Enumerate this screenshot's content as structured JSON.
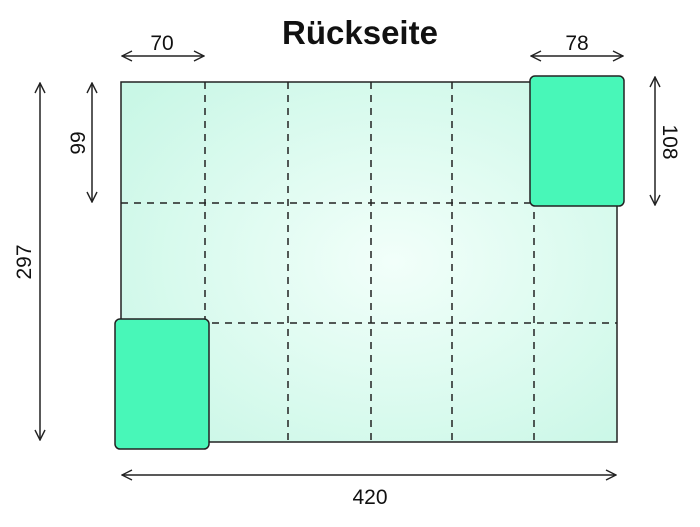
{
  "title": "Rückseite",
  "dimensions": {
    "cell_width": "70",
    "label_width": "78",
    "total_width": "420",
    "total_height": "297",
    "cell_height": "99",
    "label_height": "108"
  },
  "grid": {
    "columns": 6,
    "rows": 3
  },
  "colors": {
    "sheet_fill_center": "#f2fffa",
    "sheet_fill_edge": "#c9f7e6",
    "label_fill": "#48f7b8",
    "line": "#222222"
  }
}
